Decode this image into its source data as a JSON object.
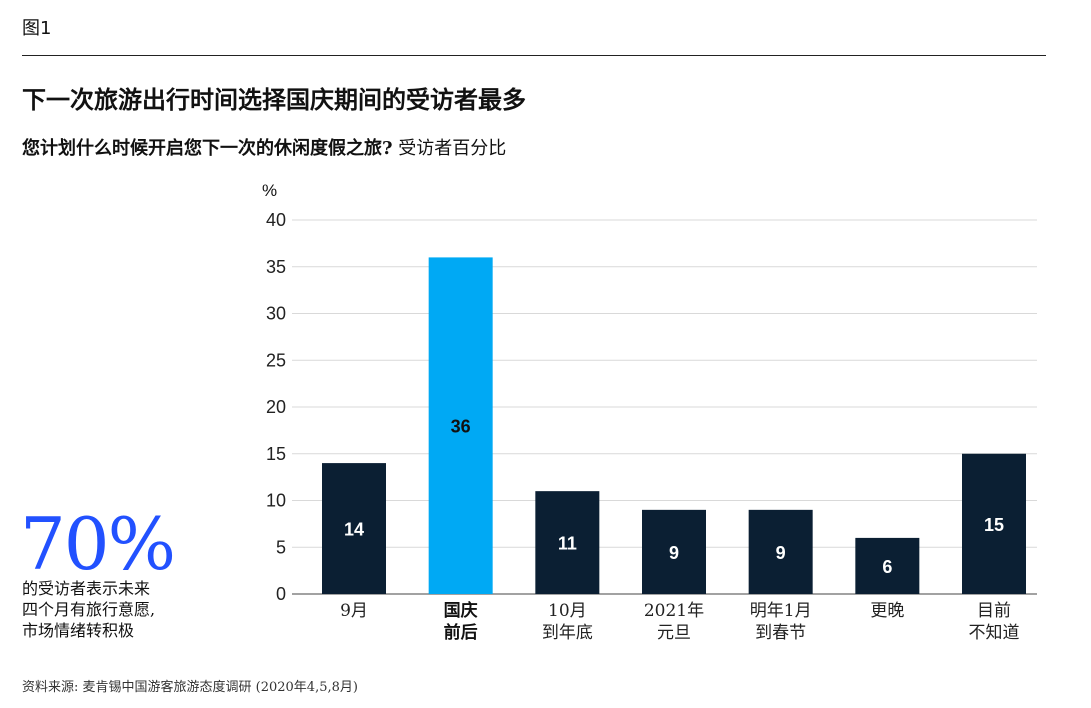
{
  "figure_label": "图1",
  "title": "下一次旅游出行时间选择国庆期间的受访者最多",
  "subtitle_question": "您计划什么时候开启您下一次的休闲度假之旅?",
  "subtitle_unit": "受访者百分比",
  "unit_symbol": "%",
  "highlight": {
    "value": "70%",
    "lines": [
      "的受访者表示未来",
      "四个月有旅行意愿,",
      "市场情绪转积极"
    ]
  },
  "source": "资料来源: 麦肯锡中国游客旅游态度调研 (2020年4,5,8月)",
  "colors": {
    "bar_default": "#0b1f33",
    "bar_highlight": "#00a9f4",
    "accent": "#2251ff",
    "grid": "#d9d9d9"
  },
  "chart_data": {
    "type": "bar",
    "categories": [
      [
        "9月"
      ],
      [
        "国庆",
        "前后"
      ],
      [
        "10月",
        "到年底"
      ],
      [
        "2021年",
        "元旦"
      ],
      [
        "明年1月",
        "到春节"
      ],
      [
        "更晚"
      ],
      [
        "目前",
        "不知道"
      ]
    ],
    "values": [
      14,
      36,
      11,
      9,
      9,
      6,
      15
    ],
    "highlight_index": 1,
    "ylim": [
      0,
      40
    ],
    "yticks": [
      0,
      5,
      10,
      15,
      20,
      25,
      30,
      35,
      40
    ],
    "grid": true
  }
}
